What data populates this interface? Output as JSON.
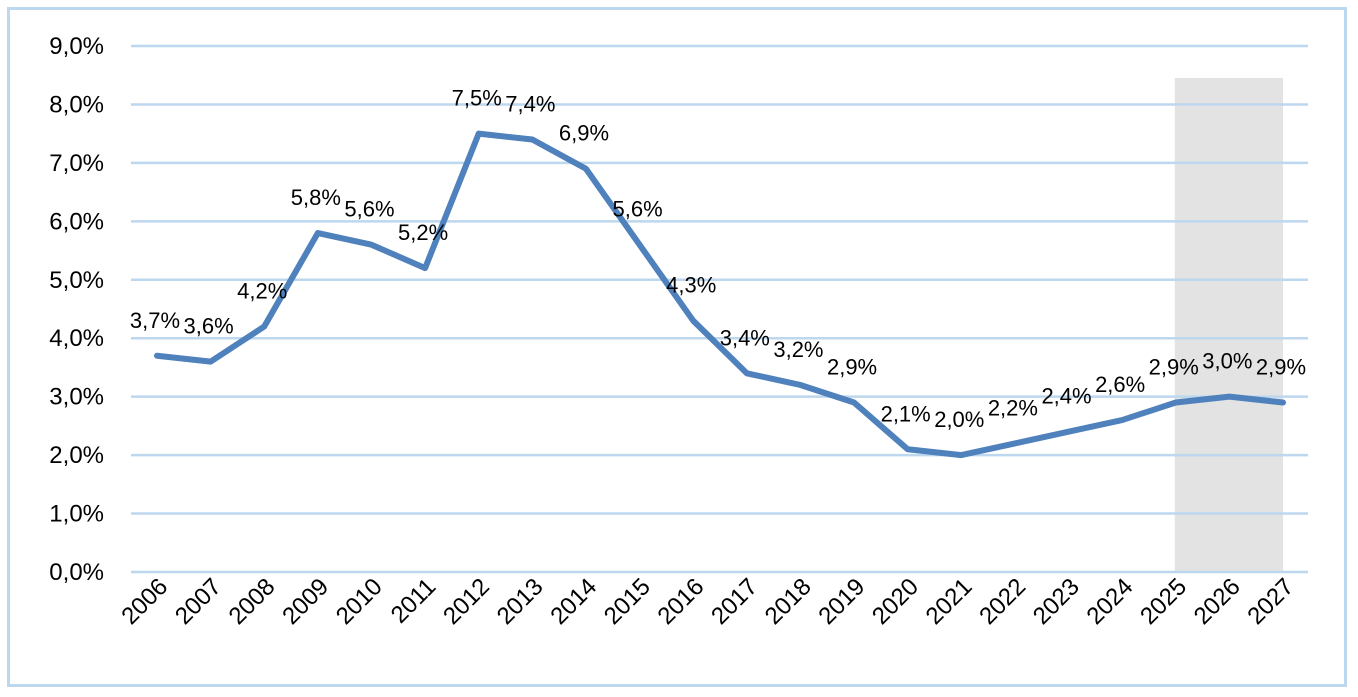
{
  "chart_data": {
    "type": "line",
    "title": "",
    "xlabel": "",
    "ylabel": "",
    "categories": [
      "2006",
      "2007",
      "2008",
      "2009",
      "2010",
      "2011",
      "2012",
      "2013",
      "2014",
      "2015",
      "2016",
      "2017",
      "2018",
      "2019",
      "2020",
      "2021",
      "2022",
      "2023",
      "2024",
      "2025",
      "2026",
      "2027"
    ],
    "series": [
      {
        "name": "",
        "values": [
          3.7,
          3.6,
          4.2,
          5.8,
          5.6,
          5.2,
          7.5,
          7.4,
          6.9,
          5.6,
          4.3,
          3.4,
          3.2,
          2.9,
          2.1,
          2.0,
          2.2,
          2.4,
          2.6,
          2.9,
          3.0,
          2.9
        ],
        "labels": [
          "3,7%",
          "3,6%",
          "4,2%",
          "5,8%",
          "5,6%",
          "5,2%",
          "7,5%",
          "7,4%",
          "6,9%",
          "5,6%",
          "4,3%",
          "3,4%",
          "3,2%",
          "2,9%",
          "2,1%",
          "2,0%",
          "2,2%",
          "2,4%",
          "2,6%",
          "2,9%",
          "3,0%",
          "2,9%"
        ],
        "color": "#4f81bd"
      }
    ],
    "ylim": [
      0,
      9
    ],
    "yticks": [
      0,
      1,
      2,
      3,
      4,
      5,
      6,
      7,
      8,
      9
    ],
    "ytick_labels": [
      "0,0%",
      "1,0%",
      "2,0%",
      "3,0%",
      "4,0%",
      "5,0%",
      "6,0%",
      "7,0%",
      "8,0%",
      "9,0%"
    ],
    "grid": true,
    "gridline_color": "#bdd7ee",
    "shaded_region": {
      "from": "2025",
      "to": "2027",
      "color": "#e3e3e3"
    },
    "legend": "none"
  }
}
